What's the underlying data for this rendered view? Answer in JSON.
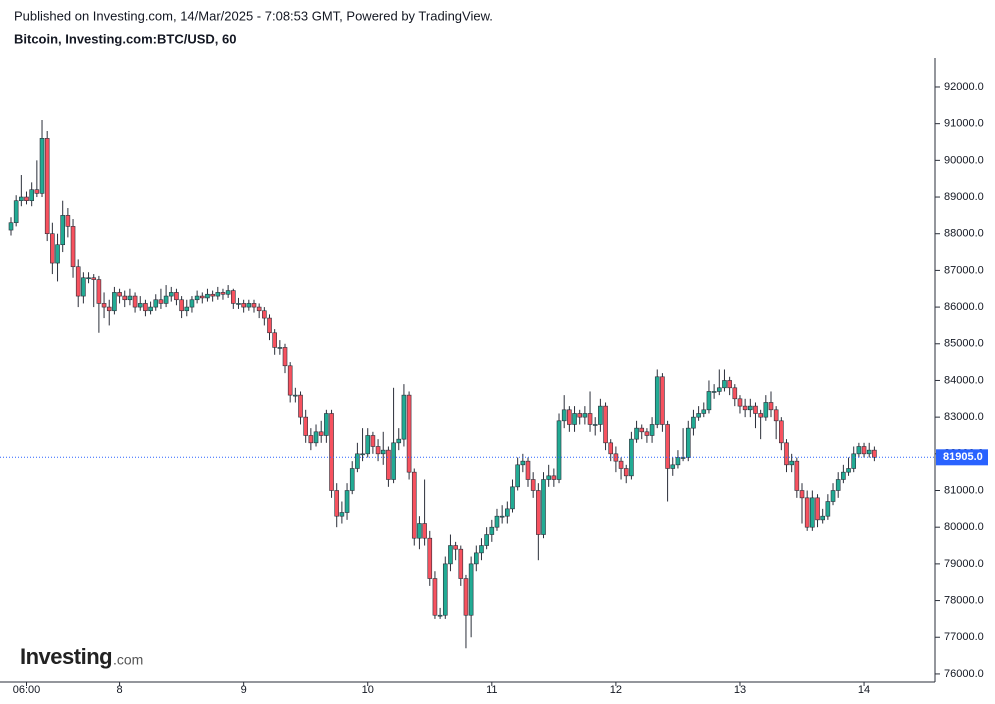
{
  "header": {
    "published": "Published on Investing.com, 14/Mar/2025 - 7:08:53 GMT, Powered by TradingView.",
    "symbol": "Bitcoin, Investing.com:BTC/USD, 60"
  },
  "logo": {
    "brand": "Investing",
    "suffix": ".com"
  },
  "chart_data": {
    "type": "candlestick",
    "categories": [
      null,
      null,
      null,
      "06:00",
      null,
      null,
      null,
      null,
      null,
      null,
      null,
      null,
      null,
      null,
      null,
      null,
      null,
      null,
      null,
      null,
      null,
      "8",
      null,
      null,
      null,
      null,
      null,
      null,
      null,
      null,
      null,
      null,
      null,
      null,
      null,
      null,
      null,
      null,
      null,
      null,
      null,
      null,
      null,
      null,
      null,
      "9",
      null,
      null,
      null,
      null,
      null,
      null,
      null,
      null,
      null,
      null,
      null,
      null,
      null,
      null,
      null,
      null,
      null,
      null,
      null,
      null,
      null,
      null,
      null,
      "10",
      null,
      null,
      null,
      null,
      null,
      null,
      null,
      null,
      null,
      null,
      null,
      null,
      null,
      null,
      null,
      null,
      null,
      null,
      null,
      null,
      null,
      null,
      null,
      "11",
      null,
      null,
      null,
      null,
      null,
      null,
      null,
      null,
      null,
      null,
      null,
      null,
      null,
      null,
      null,
      null,
      null,
      null,
      null,
      null,
      null,
      null,
      null,
      "12",
      null,
      null,
      null,
      null,
      null,
      null,
      null,
      null,
      null,
      null,
      null,
      null,
      null,
      null,
      null,
      null,
      null,
      null,
      null,
      null,
      null,
      null,
      null,
      "13",
      null,
      null,
      null,
      null,
      null,
      null,
      null,
      null,
      null,
      null,
      null,
      null,
      null,
      null,
      null,
      null,
      null,
      null,
      null,
      null,
      null,
      null,
      null,
      "14",
      null,
      null
    ],
    "open": [
      88100,
      88300,
      88900,
      89000,
      88900,
      89200,
      89100,
      90600,
      88000,
      87200,
      87700,
      88500,
      88200,
      87100,
      86300,
      86800,
      86800,
      86750,
      86100,
      86000,
      85900,
      86400,
      86300,
      86200,
      86300,
      86000,
      86100,
      85900,
      86000,
      86200,
      86100,
      86300,
      86400,
      86200,
      85900,
      86000,
      86200,
      86300,
      86250,
      86350,
      86300,
      86400,
      86350,
      86450,
      86100,
      86100,
      86000,
      86100,
      86000,
      85900,
      85700,
      85300,
      84900,
      84900,
      84400,
      83600,
      83600,
      83000,
      82500,
      82300,
      82600,
      82500,
      83100,
      81000,
      80300,
      80400,
      81000,
      81600,
      82000,
      82000,
      82500,
      82200,
      82000,
      82100,
      81300,
      82300,
      82400,
      83600,
      81500,
      79700,
      80100,
      79700,
      78600,
      77600,
      77600,
      79000,
      79500,
      79400,
      78600,
      77600,
      79000,
      79300,
      79500,
      79800,
      80000,
      80300,
      80300,
      80500,
      81100,
      81700,
      81800,
      81300,
      81000,
      79800,
      81300,
      81400,
      81300,
      82900,
      83200,
      82800,
      83100,
      83000,
      83100,
      82800,
      82800,
      83300,
      82300,
      82000,
      81800,
      81600,
      81400,
      82400,
      82700,
      82600,
      82500,
      82800,
      84100,
      82800,
      81600,
      81700,
      81900,
      81900,
      82700,
      83000,
      83100,
      83200,
      83700,
      83700,
      83800,
      84000,
      83800,
      83500,
      83300,
      83200,
      83300,
      83100,
      83000,
      83400,
      83200,
      82900,
      82300,
      81700,
      81800,
      81000,
      80800,
      80000,
      80800,
      80200,
      80300,
      80700,
      81000,
      81300,
      81500,
      81600,
      82000,
      82200,
      82000,
      82100
    ],
    "high": [
      88450,
      89050,
      89600,
      89150,
      89400,
      90000,
      91100,
      90800,
      88300,
      88000,
      88900,
      88700,
      88400,
      87300,
      86950,
      86950,
      86900,
      86850,
      86400,
      86200,
      86550,
      86500,
      86450,
      86500,
      86400,
      86300,
      86200,
      86150,
      86350,
      86500,
      86600,
      86550,
      86500,
      86300,
      86200,
      86300,
      86450,
      86400,
      86500,
      86450,
      86550,
      86500,
      86600,
      86500,
      86250,
      86200,
      86200,
      86200,
      86100,
      86000,
      85800,
      85400,
      85100,
      85000,
      84500,
      83800,
      83700,
      83200,
      82700,
      82800,
      82900,
      83200,
      83200,
      81200,
      80700,
      81200,
      81800,
      82300,
      82700,
      82700,
      82600,
      82400,
      82600,
      82200,
      83800,
      82700,
      83900,
      83700,
      81600,
      80300,
      81300,
      79900,
      78800,
      77800,
      79200,
      79800,
      79600,
      79500,
      78700,
      79200,
      79500,
      79700,
      80000,
      80200,
      80500,
      80600,
      80700,
      81300,
      81900,
      82000,
      81900,
      81500,
      81200,
      81500,
      81700,
      81600,
      83100,
      83600,
      83300,
      83300,
      83200,
      83300,
      83700,
      83000,
      83500,
      83400,
      82400,
      82200,
      81900,
      81700,
      82600,
      82900,
      82800,
      82700,
      83000,
      84300,
      84200,
      82900,
      81900,
      82100,
      82700,
      82900,
      83200,
      83300,
      83400,
      84000,
      83900,
      84300,
      84300,
      84100,
      83900,
      83600,
      83500,
      83500,
      83400,
      83200,
      83600,
      83700,
      83300,
      83000,
      82400,
      82000,
      81900,
      81200,
      81000,
      81000,
      80900,
      80500,
      80900,
      81200,
      81500,
      81700,
      81900,
      82200,
      82300,
      82300,
      82300,
      82200
    ],
    "low": [
      87950,
      88200,
      88750,
      88800,
      88750,
      89000,
      89000,
      87800,
      86900,
      86700,
      87500,
      87900,
      86800,
      86000,
      86100,
      86650,
      86000,
      85300,
      85700,
      85500,
      85800,
      86100,
      86000,
      86050,
      85850,
      85900,
      85750,
      85800,
      85900,
      85950,
      86000,
      86150,
      86050,
      85700,
      85750,
      85850,
      86100,
      86100,
      86150,
      86150,
      86200,
      86200,
      86250,
      85950,
      85950,
      85850,
      85900,
      85850,
      85700,
      85500,
      85100,
      84700,
      84700,
      84200,
      83400,
      83400,
      82800,
      82300,
      82100,
      82200,
      82300,
      82300,
      80800,
      80000,
      80100,
      80200,
      80900,
      81500,
      81800,
      81900,
      82000,
      81800,
      81700,
      81100,
      81200,
      82100,
      82200,
      81300,
      79500,
      79400,
      79500,
      78400,
      77500,
      77500,
      77500,
      78800,
      79100,
      78400,
      76700,
      77000,
      78800,
      79100,
      79400,
      79600,
      79900,
      80100,
      80100,
      80400,
      81000,
      81500,
      81100,
      80800,
      79100,
      79700,
      81100,
      81100,
      81200,
      82700,
      82600,
      82600,
      82800,
      82800,
      82600,
      82500,
      82600,
      82100,
      81800,
      81500,
      81300,
      81200,
      81300,
      82300,
      82400,
      82300,
      82300,
      82700,
      82600,
      80700,
      81400,
      81600,
      81800,
      81800,
      82500,
      82900,
      83000,
      83100,
      83500,
      83600,
      83700,
      83600,
      83300,
      83100,
      83000,
      83000,
      82700,
      82400,
      82900,
      83000,
      82400,
      82100,
      81500,
      81500,
      80800,
      80100,
      79900,
      79900,
      80000,
      80100,
      80200,
      80600,
      80800,
      81200,
      81400,
      81500,
      81900,
      81900,
      81900,
      81800
    ],
    "close": [
      88300,
      88900,
      89000,
      88900,
      89200,
      89100,
      90600,
      88000,
      87200,
      87700,
      88500,
      88200,
      87100,
      86300,
      86800,
      86800,
      86750,
      86100,
      86000,
      85900,
      86400,
      86300,
      86200,
      86300,
      86000,
      86100,
      85900,
      86000,
      86200,
      86100,
      86300,
      86400,
      86200,
      85900,
      86000,
      86200,
      86300,
      86250,
      86350,
      86300,
      86400,
      86350,
      86450,
      86100,
      86100,
      86000,
      86100,
      86000,
      85900,
      85700,
      85300,
      84900,
      84900,
      84400,
      83600,
      83600,
      83000,
      82500,
      82300,
      82600,
      82500,
      83100,
      81000,
      80300,
      80400,
      81000,
      81600,
      82000,
      82000,
      82500,
      82200,
      82000,
      82100,
      81300,
      82300,
      82400,
      83600,
      81500,
      79700,
      80100,
      79700,
      78600,
      77600,
      77600,
      79000,
      79500,
      79400,
      78600,
      77600,
      79000,
      79300,
      79500,
      79800,
      80000,
      80300,
      80300,
      80500,
      81100,
      81700,
      81800,
      81300,
      81000,
      79800,
      81300,
      81400,
      81300,
      82900,
      83200,
      82800,
      83100,
      83000,
      83100,
      82800,
      82800,
      83300,
      82300,
      82000,
      81800,
      81600,
      81400,
      82400,
      82700,
      82600,
      82500,
      82800,
      84100,
      82800,
      81600,
      81700,
      81900,
      81900,
      82700,
      83000,
      83100,
      83200,
      83700,
      83700,
      83800,
      84000,
      83800,
      83500,
      83300,
      83200,
      83300,
      83100,
      83000,
      83400,
      83200,
      82900,
      82300,
      81700,
      81800,
      81000,
      80800,
      80000,
      80800,
      80200,
      80300,
      80700,
      81000,
      81300,
      81500,
      81600,
      82000,
      82200,
      82000,
      82100,
      81905
    ],
    "up_color": "#22ab94",
    "down_color": "#f7525f",
    "wick_color": "#2a2e39",
    "last_price": {
      "value": 81905,
      "label": "81905.0"
    },
    "last_price_color": "#2962ff",
    "ylim": [
      75780,
      92790
    ],
    "yticks": [
      {
        "value": 76000,
        "label": "76000.0"
      },
      {
        "value": 77000,
        "label": "77000.0"
      },
      {
        "value": 78000,
        "label": "78000.0"
      },
      {
        "value": 79000,
        "label": "79000.0"
      },
      {
        "value": 80000,
        "label": "80000.0"
      },
      {
        "value": 81000,
        "label": "81000.0"
      },
      {
        "value": 82000,
        "label": "82000.0"
      },
      {
        "value": 83000,
        "label": "83000.0"
      },
      {
        "value": 84000,
        "label": "84000.0"
      },
      {
        "value": 85000,
        "label": "85000.0"
      },
      {
        "value": 86000,
        "label": "86000.0"
      },
      {
        "value": 87000,
        "label": "87000.0"
      },
      {
        "value": 88000,
        "label": "88000.0"
      },
      {
        "value": 89000,
        "label": "89000.0"
      },
      {
        "value": 90000,
        "label": "90000.0"
      },
      {
        "value": 91000,
        "label": "91000.0"
      },
      {
        "value": 92000,
        "label": "92000.0"
      }
    ],
    "grid": false
  }
}
